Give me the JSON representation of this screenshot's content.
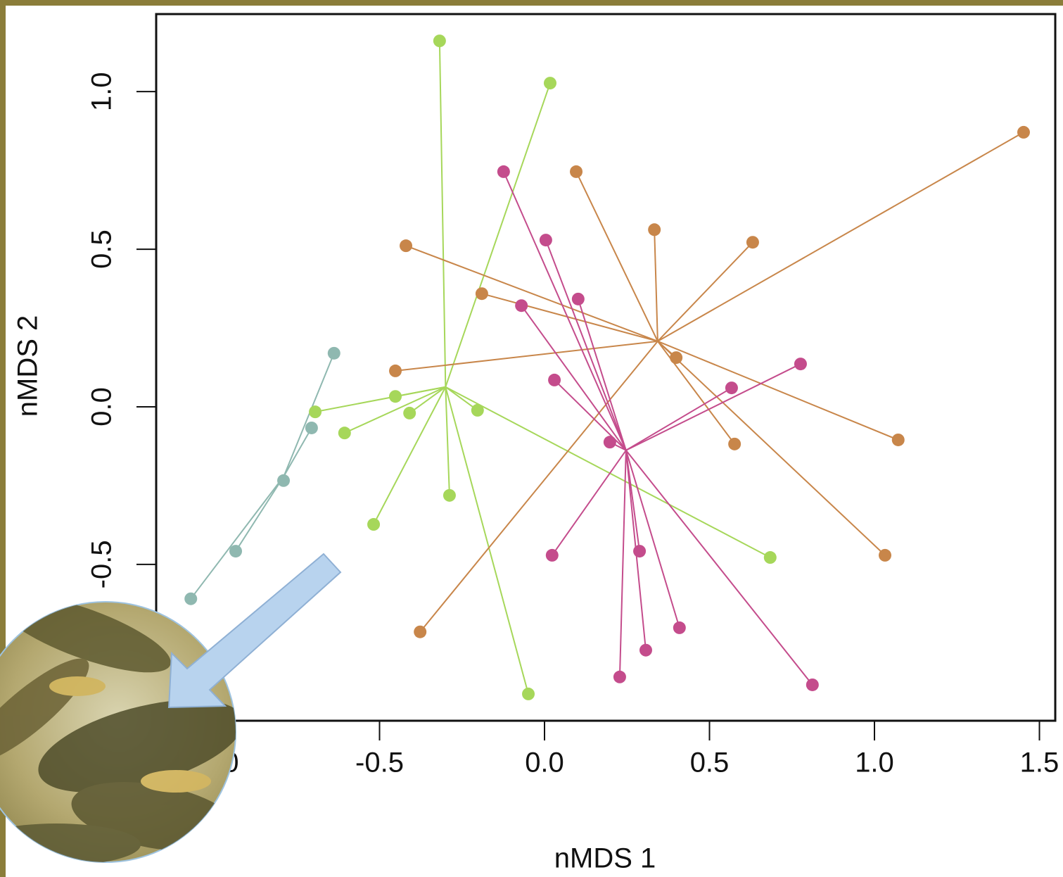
{
  "chart_data": {
    "type": "scatter",
    "xlabel": "nMDS 1",
    "ylabel": "nMDS 2",
    "xlim": [
      -1.177,
      1.548
    ],
    "ylim": [
      -0.996,
      1.246
    ],
    "xticks": [
      {
        "value": -1.0,
        "label": "-1.0"
      },
      {
        "value": -0.5,
        "label": "-0.5"
      },
      {
        "value": 0.0,
        "label": "0.0"
      },
      {
        "value": 0.5,
        "label": "0.5"
      },
      {
        "value": 1.0,
        "label": "1.0"
      },
      {
        "value": 1.5,
        "label": "1.5"
      }
    ],
    "yticks": [
      {
        "value": -0.5,
        "label": "-0.5"
      },
      {
        "value": 0.0,
        "label": "0.0"
      },
      {
        "value": 0.5,
        "label": "0.5"
      },
      {
        "value": 1.0,
        "label": "1.0"
      }
    ],
    "series": [
      {
        "color": "#8fb8b0",
        "centroid": [
          -0.79,
          -0.22
        ],
        "x": [
          -0.638,
          -0.706,
          -0.791,
          -0.936,
          -1.072
        ],
        "values": [
          0.17,
          -0.067,
          -0.234,
          -0.458,
          -0.609
        ]
      },
      {
        "color": "#a6d75a",
        "centroid": [
          -0.3,
          0.063
        ],
        "x": [
          -0.318,
          0.017,
          -0.695,
          -0.452,
          -0.409,
          -0.606,
          -0.203,
          -0.288,
          -0.518,
          0.684,
          -0.049
        ],
        "values": [
          1.161,
          1.027,
          -0.016,
          0.033,
          -0.02,
          -0.083,
          -0.011,
          -0.281,
          -0.373,
          -0.478,
          -0.911
        ]
      },
      {
        "color": "#c8864a",
        "centroid": [
          0.343,
          0.208
        ],
        "x": [
          1.452,
          0.096,
          0.333,
          0.631,
          -0.42,
          -0.19,
          -0.452,
          0.399,
          0.576,
          1.072,
          1.032,
          -0.377
        ],
        "values": [
          0.871,
          0.746,
          0.562,
          0.522,
          0.511,
          0.359,
          0.114,
          0.156,
          -0.118,
          -0.105,
          -0.471,
          -0.714
        ]
      },
      {
        "color": "#c44c8c",
        "centroid": [
          0.247,
          -0.138
        ],
        "x": [
          -0.124,
          0.004,
          0.102,
          -0.07,
          0.03,
          0.776,
          0.567,
          0.198,
          0.023,
          0.288,
          0.409,
          0.307,
          0.228,
          0.812
        ],
        "values": [
          0.746,
          0.529,
          0.342,
          0.321,
          0.085,
          0.136,
          0.06,
          -0.112,
          -0.471,
          -0.458,
          -0.701,
          -0.772,
          -0.857,
          -0.882
        ]
      }
    ]
  }
}
